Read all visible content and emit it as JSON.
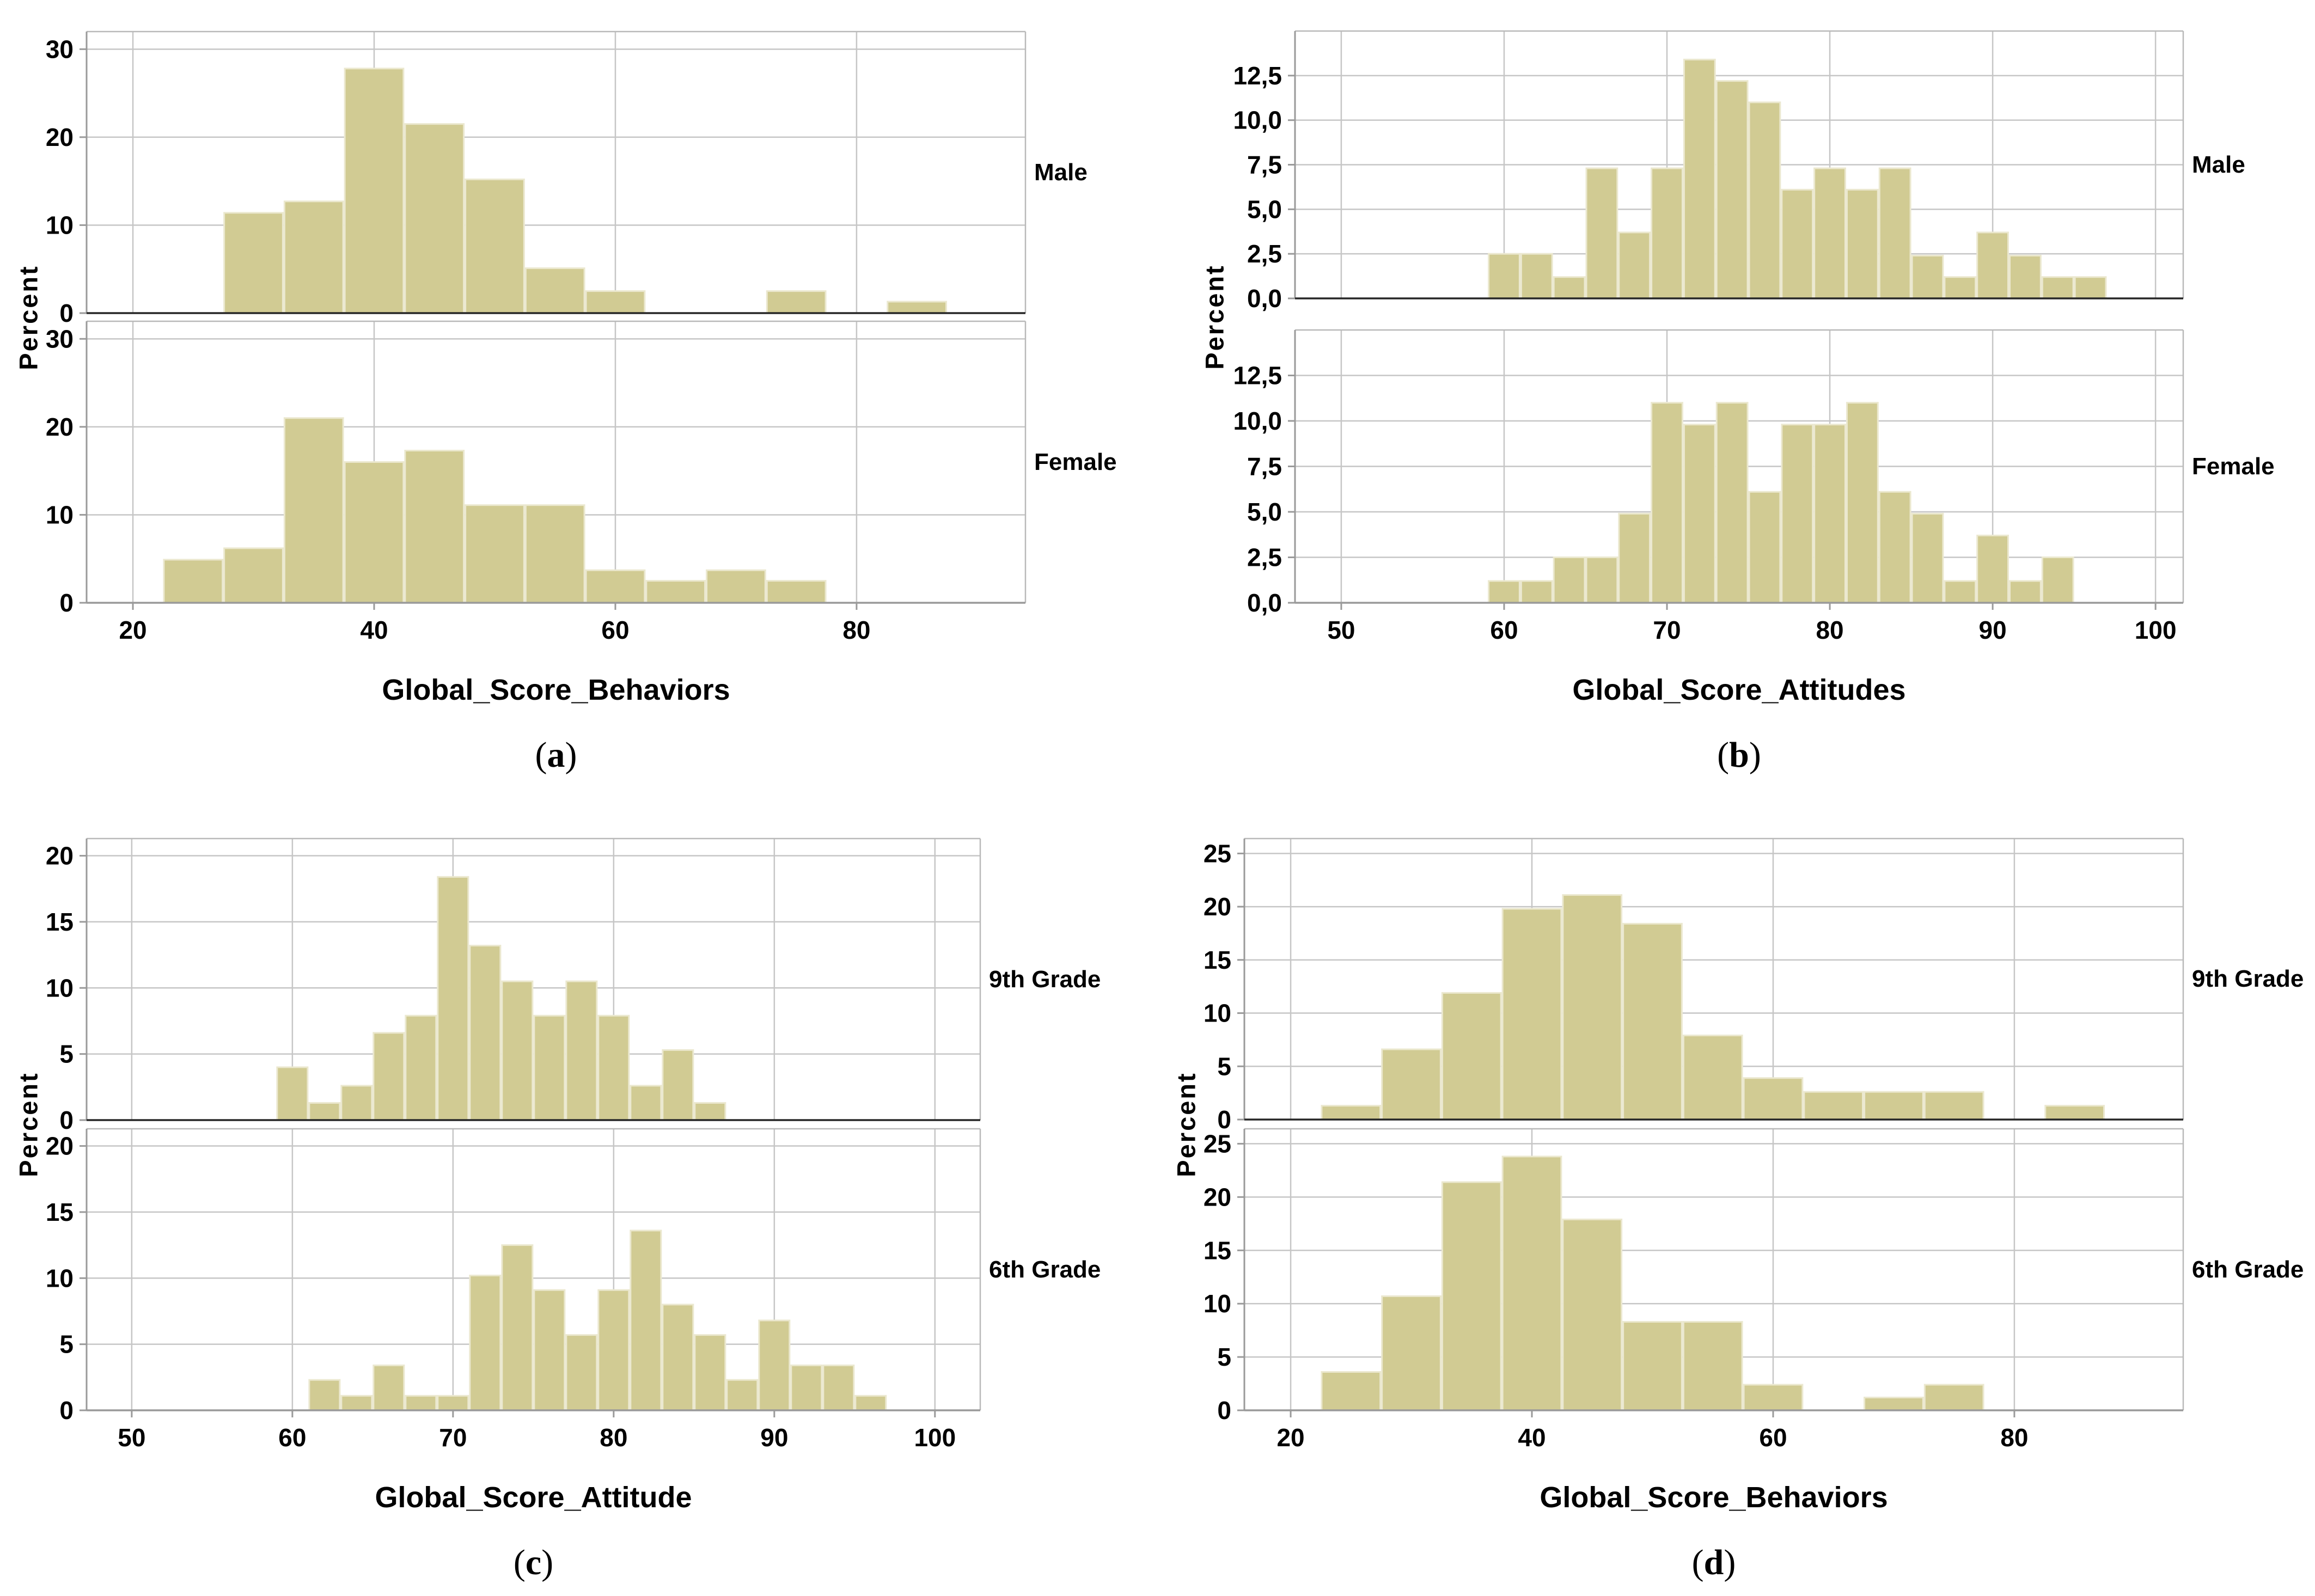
{
  "chart_data": {
    "type": "histogram",
    "figure_kind": "paneled-histograms",
    "ylabel": "Percent",
    "caption_open": "(",
    "caption_close": ")",
    "panels": [
      {
        "id": "a",
        "caption": "a",
        "xlabel": "Global_Score_Behaviors",
        "x": {
          "lim": [
            16.16,
            94.0
          ],
          "ticks": [
            {
              "v": 20,
              "label": "20"
            },
            {
              "v": 40,
              "label": "40"
            },
            {
              "v": 60,
              "label": "60"
            },
            {
              "v": 80,
              "label": "80"
            }
          ]
        },
        "y": {
          "max_display": 32,
          "ticks": [
            {
              "v": 0,
              "label": "0"
            },
            {
              "v": 10,
              "label": "10"
            },
            {
              "v": 20,
              "label": "20"
            },
            {
              "v": 30,
              "label": "30"
            }
          ]
        },
        "facets": [
          {
            "label": "Male",
            "bin_start": 27.5,
            "bin_width": 5,
            "values": [
              11.4,
              12.7,
              27.8,
              21.5,
              15.2,
              5.1,
              2.5,
              0,
              0,
              2.5,
              0,
              1.3
            ]
          },
          {
            "label": "Female",
            "bin_start": 22.5,
            "bin_width": 5,
            "values": [
              4.9,
              6.2,
              21.0,
              16.0,
              17.3,
              11.1,
              11.1,
              3.7,
              2.5,
              3.7,
              2.5
            ]
          }
        ]
      },
      {
        "id": "b",
        "caption": "b",
        "xlabel": "Global_Score_Attitudes",
        "x": {
          "lim": [
            47.16,
            101.7
          ],
          "ticks": [
            {
              "v": 50,
              "label": "50"
            },
            {
              "v": 60,
              "label": "60"
            },
            {
              "v": 70,
              "label": "70"
            },
            {
              "v": 80,
              "label": "80"
            },
            {
              "v": 90,
              "label": "90"
            },
            {
              "v": 100,
              "label": "100"
            }
          ]
        },
        "y": {
          "max_display": 15.0,
          "ticks": [
            {
              "v": 0,
              "label": "0,0"
            },
            {
              "v": 2.5,
              "label": "2,5"
            },
            {
              "v": 5,
              "label": "5,0"
            },
            {
              "v": 7.5,
              "label": "7,5"
            },
            {
              "v": 10,
              "label": "10,0"
            },
            {
              "v": 12.5,
              "label": "12,5"
            }
          ]
        },
        "facets": [
          {
            "label": "Male",
            "bin_start": 59,
            "bin_width": 2,
            "values": [
              2.5,
              2.5,
              1.2,
              7.3,
              3.7,
              7.3,
              13.4,
              12.2,
              11.0,
              6.1,
              7.3,
              6.1,
              7.3,
              2.4,
              1.2,
              3.7,
              2.4,
              1.2,
              1.2
            ]
          },
          {
            "label": "Female",
            "bin_start": 59,
            "bin_width": 2,
            "values": [
              1.2,
              1.2,
              2.5,
              2.5,
              4.9,
              11.0,
              9.8,
              11.0,
              6.1,
              9.8,
              9.8,
              11.0,
              6.1,
              4.9,
              1.2,
              3.7,
              1.2,
              2.5
            ]
          }
        ]
      },
      {
        "id": "c",
        "caption": "c",
        "xlabel": "Global_Score_Attitude",
        "x": {
          "lim": [
            47.19,
            102.82
          ],
          "ticks": [
            {
              "v": 50,
              "label": "50"
            },
            {
              "v": 60,
              "label": "60"
            },
            {
              "v": 70,
              "label": "70"
            },
            {
              "v": 80,
              "label": "80"
            },
            {
              "v": 90,
              "label": "90"
            },
            {
              "v": 100,
              "label": "100"
            }
          ]
        },
        "y": {
          "max_display": 21.3,
          "ticks": [
            {
              "v": 0,
              "label": "0"
            },
            {
              "v": 5,
              "label": "5"
            },
            {
              "v": 10,
              "label": "10"
            },
            {
              "v": 15,
              "label": "15"
            },
            {
              "v": 20,
              "label": "20"
            }
          ]
        },
        "facets": [
          {
            "label": "9th Grade",
            "bin_start": 59,
            "bin_width": 2,
            "values": [
              4.0,
              1.3,
              2.6,
              6.6,
              7.9,
              18.4,
              13.2,
              10.5,
              7.9,
              10.5,
              7.9,
              2.6,
              5.3,
              1.3
            ]
          },
          {
            "label": "6th Grade",
            "bin_start": 61,
            "bin_width": 2,
            "values": [
              2.3,
              1.1,
              3.4,
              1.1,
              1.1,
              10.2,
              12.5,
              9.1,
              5.7,
              9.1,
              13.6,
              8.0,
              5.7,
              2.3,
              6.8,
              3.4,
              3.4,
              1.1
            ]
          }
        ]
      },
      {
        "id": "d",
        "caption": "d",
        "xlabel": "Global_Score_Behaviors",
        "x": {
          "lim": [
            16.16,
            94.0
          ],
          "ticks": [
            {
              "v": 20,
              "label": "20"
            },
            {
              "v": 40,
              "label": "40"
            },
            {
              "v": 60,
              "label": "60"
            },
            {
              "v": 80,
              "label": "80"
            }
          ]
        },
        "y": {
          "max_display": 26.4,
          "ticks": [
            {
              "v": 0,
              "label": "0"
            },
            {
              "v": 5,
              "label": "5"
            },
            {
              "v": 10,
              "label": "10"
            },
            {
              "v": 15,
              "label": "15"
            },
            {
              "v": 20,
              "label": "20"
            },
            {
              "v": 25,
              "label": "25"
            }
          ]
        },
        "facets": [
          {
            "label": "9th Grade",
            "bin_start": 22.5,
            "bin_width": 5,
            "values": [
              1.3,
              6.6,
              11.9,
              19.8,
              21.1,
              18.4,
              7.9,
              3.9,
              2.6,
              2.6,
              2.6,
              0,
              1.3
            ]
          },
          {
            "label": "6th Grade",
            "bin_start": 22.5,
            "bin_width": 5,
            "values": [
              3.6,
              10.7,
              21.4,
              23.8,
              17.9,
              8.3,
              8.3,
              2.4,
              0,
              1.2,
              2.4
            ]
          }
        ]
      }
    ]
  },
  "colors": {
    "bar_fill": "#d1cb93",
    "bar_border": "#ebe8cf",
    "grid": "#c6c6c6",
    "frame": "#b9b9b9",
    "axis_dark": "#262626",
    "axis_gray": "#9a9a9a",
    "text": "#000000",
    "background": "#ffffff"
  }
}
